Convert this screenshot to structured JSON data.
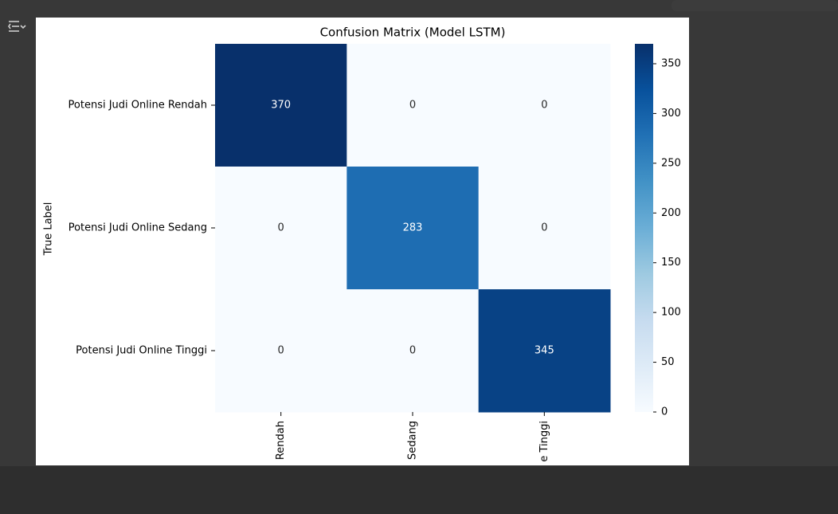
{
  "chart_data": {
    "type": "heatmap",
    "title": "Confusion Matrix (Model LSTM)",
    "y_label": "True Label",
    "row_categories": [
      "Potensi Judi Online Rendah",
      "Potensi Judi Online Sedang",
      "Potensi Judi Online Tinggi"
    ],
    "col_categories": [
      "Rendah",
      "Sedang",
      "e Tinggi"
    ],
    "values": [
      [
        370,
        0,
        0
      ],
      [
        0,
        283,
        0
      ],
      [
        0,
        0,
        345
      ]
    ],
    "colormap": [
      "#f7fbff",
      "#deebf7",
      "#c6dbef",
      "#9ecae1",
      "#6baed6",
      "#4292c6",
      "#2171b5",
      "#08519c",
      "#08306b"
    ],
    "clim": [
      0,
      370
    ],
    "cticks": [
      0,
      50,
      100,
      150,
      200,
      250,
      300,
      350
    ]
  }
}
